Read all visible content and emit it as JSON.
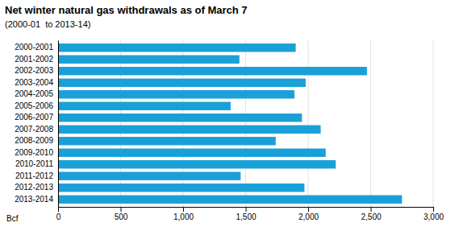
{
  "chart_data": {
    "type": "bar",
    "orientation": "horizontal",
    "title": "Net winter natural gas withdrawals as of March 7",
    "subtitle": "(2000-01  to 2013-14)",
    "xlabel": "Bcf",
    "categories": [
      "2000-2001",
      "2001-2002",
      "2002-2003",
      "2003-2004",
      "2004-2005",
      "2005-2006",
      "2006-2007",
      "2007-2008",
      "2008-2009",
      "2009-2010",
      "2010-2011",
      "2011-2012",
      "2012-2013",
      "2013-2014"
    ],
    "values": [
      1900,
      1450,
      2470,
      1980,
      1890,
      1380,
      1950,
      2100,
      1740,
      2140,
      2220,
      1460,
      1970,
      2750
    ],
    "color": "#1aa0d8",
    "xlim": [
      0,
      3000
    ],
    "xticks": [
      0,
      500,
      {
        "value": 1000,
        "label": "1,000"
      },
      {
        "value": 1500,
        "label": "1,500"
      },
      {
        "value": 2000,
        "label": "2,000"
      },
      {
        "value": 2500,
        "label": "2,500"
      },
      {
        "value": 3000,
        "label": "3,000"
      }
    ],
    "grid": true
  }
}
